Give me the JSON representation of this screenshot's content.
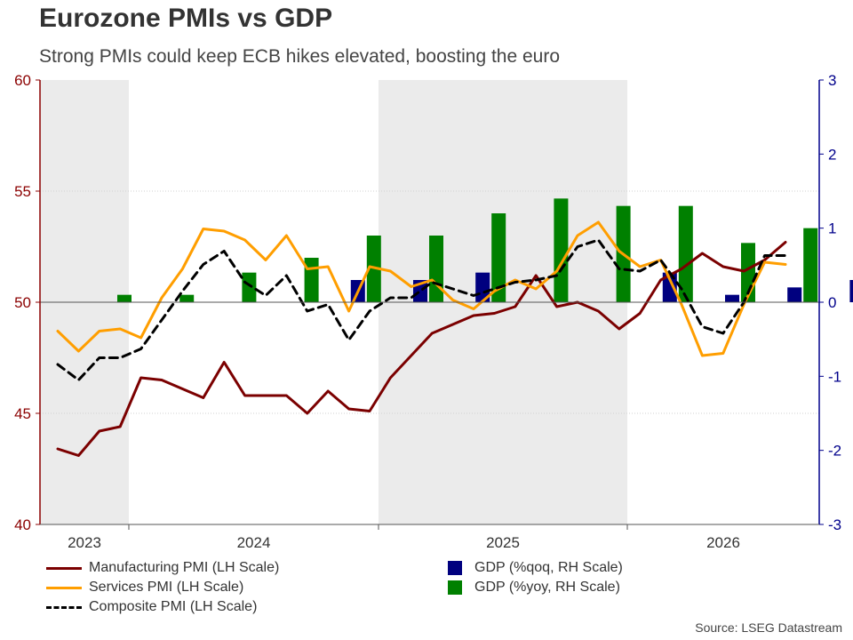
{
  "header": {
    "title": "Eurozone PMIs vs GDP",
    "subtitle": "Strong PMIs could keep ECB hikes elevated, boosting the euro"
  },
  "source": "Source: LSEG Datastream",
  "colors": {
    "manufacturing": "#7b0000",
    "services": "#ff9e00",
    "composite": "#000000",
    "gdp_qoq": "#00007f",
    "gdp_yoy": "#008000",
    "left_axis": "#8b0000",
    "right_axis": "#00008b",
    "shade": "#ebebeb"
  },
  "chart_data": {
    "type": "line",
    "title": "Eurozone PMIs vs GDP",
    "subtitle": "Strong PMIs could keep ECB hikes elevated, boosting the euro",
    "x_ticks": [
      "2023",
      "2024",
      "2025",
      "2026"
    ],
    "y_left": {
      "ylim": [
        40,
        60
      ],
      "ticks": [
        "40",
        "45",
        "50",
        "55",
        "60"
      ]
    },
    "y_right": {
      "ylim": [
        -3,
        3
      ],
      "ticks": [
        "-3",
        "-2",
        "-1",
        "0",
        "1",
        "2",
        "3"
      ]
    },
    "grid": true,
    "legend_position": "bottom",
    "shaded_years": [
      "2023",
      "2025"
    ],
    "months": 45,
    "series": [
      {
        "name": "Manufacturing PMI (LH Scale)",
        "axis": "left",
        "style": "solid",
        "values": [
          43.4,
          43.1,
          44.2,
          44.4,
          46.6,
          46.5,
          46.1,
          45.7,
          47.3,
          45.8,
          45.8,
          45.8,
          45.0,
          46.0,
          45.2,
          45.1,
          46.6,
          47.6,
          48.6,
          49.0,
          49.4,
          49.5,
          49.8,
          51.2,
          49.8,
          50.0,
          49.6,
          48.8,
          49.5,
          51.0,
          51.5,
          52.2,
          51.6,
          51.4,
          51.9,
          52.7
        ],
        "start_index": 1
      },
      {
        "name": "Services PMI (LH Scale)",
        "axis": "left",
        "style": "solid",
        "values": [
          48.7,
          47.8,
          48.7,
          48.8,
          48.4,
          50.2,
          51.5,
          53.3,
          53.2,
          52.8,
          51.9,
          53.0,
          51.5,
          51.6,
          49.6,
          51.6,
          51.4,
          50.7,
          51.0,
          50.1,
          49.7,
          50.5,
          51.0,
          50.6,
          51.4,
          53.0,
          53.6,
          52.3,
          51.6,
          51.9,
          49.9,
          47.6,
          47.7,
          49.9,
          51.8,
          51.7
        ],
        "start_index": 1
      },
      {
        "name": "Composite PMI (LH Scale)",
        "axis": "left",
        "style": "dashed",
        "values": [
          47.2,
          46.5,
          47.5,
          47.5,
          47.9,
          49.2,
          50.5,
          51.7,
          52.3,
          50.9,
          50.3,
          51.2,
          49.6,
          49.9,
          48.3,
          49.6,
          50.2,
          50.2,
          50.9,
          50.6,
          50.3,
          50.6,
          50.9,
          51.0,
          51.2,
          52.5,
          52.8,
          51.5,
          51.4,
          51.9,
          50.6,
          48.9,
          48.6,
          50.0,
          52.1,
          52.1
        ],
        "start_index": 1
      },
      {
        "name": "GDP (%qoq, RH Scale)",
        "axis": "right",
        "style": "bar",
        "quarter_index": [
          1,
          2,
          3,
          4,
          5,
          6,
          7,
          8,
          9,
          10,
          11,
          12,
          13,
          14
        ],
        "values": [
          0.0,
          0.0,
          0.0,
          0.3,
          0.3,
          0.4,
          0.0,
          0.0,
          0.4,
          0.1,
          0.2,
          0.3,
          0.1,
          0.4
        ]
      },
      {
        "name": "GDP (%yoy, RH Scale)",
        "axis": "right",
        "style": "bar",
        "quarter_index": [
          0,
          1,
          2,
          3,
          4,
          5,
          6,
          7,
          8,
          9,
          10,
          11,
          12,
          13
        ],
        "values": [
          0.1,
          0.1,
          0.4,
          0.6,
          0.9,
          0.9,
          1.2,
          1.4,
          1.3,
          1.3,
          0.8,
          1.0,
          0.0,
          0.0
        ]
      }
    ]
  }
}
